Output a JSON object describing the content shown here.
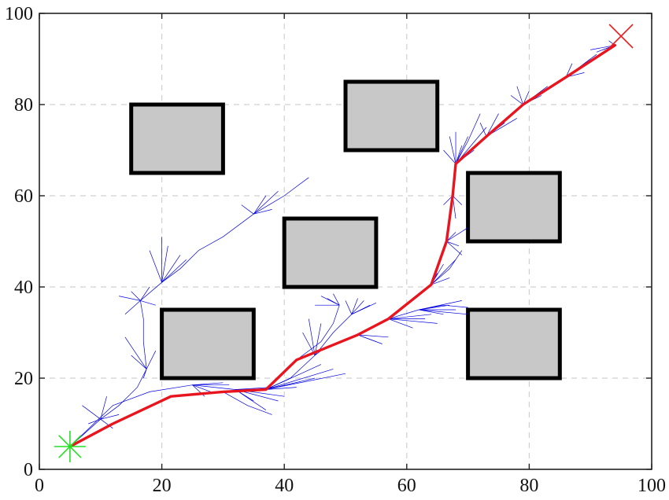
{
  "chart_data": {
    "type": "rrt-path-plot",
    "title": "",
    "xlabel": "",
    "ylabel": "",
    "xlim": [
      0,
      100
    ],
    "ylim": [
      0,
      100
    ],
    "xticks": [
      0,
      20,
      40,
      60,
      80,
      100
    ],
    "yticks": [
      0,
      20,
      40,
      60,
      80,
      100
    ],
    "grid": true,
    "colors": {
      "obstacle_fill": "#c8c8c8",
      "obstacle_edge": "#000000",
      "tree": "#0000e0",
      "path": "#e8141e",
      "start": "#22e022",
      "goal": "#e82020"
    },
    "start": [
      5,
      5
    ],
    "goal": [
      95,
      95
    ],
    "obstacles": [
      {
        "x0": 15,
        "y0": 65,
        "x1": 30,
        "y1": 80
      },
      {
        "x0": 50,
        "y0": 70,
        "x1": 65,
        "y1": 85
      },
      {
        "x0": 70,
        "y0": 50,
        "x1": 85,
        "y1": 65
      },
      {
        "x0": 40,
        "y0": 40,
        "x1": 55,
        "y1": 55
      },
      {
        "x0": 20,
        "y0": 20,
        "x1": 35,
        "y1": 35
      },
      {
        "x0": 70,
        "y0": 20,
        "x1": 85,
        "y1": 35
      }
    ],
    "path": [
      [
        5,
        5
      ],
      [
        12,
        10
      ],
      [
        21.5,
        16
      ],
      [
        30,
        17
      ],
      [
        37,
        17.5
      ],
      [
        42,
        24
      ],
      [
        52,
        29.5
      ],
      [
        57,
        33
      ],
      [
        64,
        40.5
      ],
      [
        66.5,
        50
      ],
      [
        67.5,
        60
      ],
      [
        68,
        67
      ],
      [
        73,
        73
      ],
      [
        79,
        80
      ],
      [
        86,
        86
      ],
      [
        94,
        93
      ]
    ],
    "tree_branches": [
      [
        [
          5,
          5
        ],
        [
          10,
          11
        ],
        [
          13,
          14
        ],
        [
          16,
          18
        ],
        [
          17.5,
          22
        ],
        [
          17,
          28
        ],
        [
          17,
          33
        ],
        [
          16.5,
          37
        ],
        [
          20,
          41
        ],
        [
          23,
          44
        ],
        [
          26,
          48
        ],
        [
          30,
          51
        ],
        [
          35,
          56
        ],
        [
          40,
          60
        ],
        [
          44,
          64
        ]
      ],
      [
        [
          5,
          5
        ],
        [
          12,
          14
        ],
        [
          18,
          17
        ],
        [
          25,
          18.5
        ],
        [
          32,
          17.5
        ],
        [
          37,
          17.5
        ]
      ],
      [
        [
          30,
          17
        ],
        [
          34,
          14
        ],
        [
          38,
          12
        ]
      ],
      [
        [
          37,
          17.5
        ],
        [
          41,
          20
        ],
        [
          45,
          25
        ],
        [
          48,
          30
        ],
        [
          51,
          34
        ],
        [
          53,
          37
        ]
      ],
      [
        [
          42,
          24
        ],
        [
          46,
          28
        ],
        [
          48,
          32
        ],
        [
          49,
          36
        ]
      ],
      [
        [
          57,
          33
        ],
        [
          62,
          35
        ],
        [
          66,
          36
        ],
        [
          70,
          35.5
        ]
      ],
      [
        [
          64,
          40.5
        ],
        [
          67,
          44
        ],
        [
          69,
          48
        ]
      ],
      [
        [
          68,
          67
        ],
        [
          70,
          72
        ],
        [
          72,
          78
        ]
      ]
    ],
    "tree_fans": [
      {
        "at": [
          16.5,
          37
        ],
        "to": [
          [
            13,
            38
          ],
          [
            14,
            34
          ],
          [
            15,
            39
          ],
          [
            18,
            40
          ],
          [
            19,
            36
          ]
        ]
      },
      {
        "at": [
          20,
          41
        ],
        "to": [
          [
            18,
            48
          ],
          [
            20,
            51
          ],
          [
            21,
            49
          ],
          [
            23,
            47
          ],
          [
            24,
            46
          ]
        ]
      },
      {
        "at": [
          17.5,
          22
        ],
        "to": [
          [
            15,
            25
          ],
          [
            14,
            29
          ],
          [
            17,
            20
          ],
          [
            19,
            26
          ]
        ]
      },
      {
        "at": [
          35,
          56
        ],
        "to": [
          [
            33,
            58
          ],
          [
            37,
            60
          ],
          [
            38,
            57
          ],
          [
            39,
            61
          ]
        ]
      },
      {
        "at": [
          10,
          11
        ],
        "to": [
          [
            7,
            14
          ],
          [
            8,
            10
          ],
          [
            12,
            9
          ],
          [
            13,
            12
          ],
          [
            11,
            16
          ]
        ]
      },
      {
        "at": [
          25,
          18.5
        ],
        "to": [
          [
            28,
            17
          ],
          [
            30,
            19
          ],
          [
            27,
            16
          ],
          [
            31,
            18.5
          ]
        ]
      },
      {
        "at": [
          32,
          17.5
        ],
        "to": [
          [
            35,
            15
          ],
          [
            37,
            13
          ],
          [
            39,
            15
          ],
          [
            40,
            16
          ],
          [
            38,
            18
          ]
        ]
      },
      {
        "at": [
          37,
          17.5
        ],
        "to": [
          [
            42,
            18
          ],
          [
            45,
            20
          ],
          [
            48,
            22
          ],
          [
            50,
            21
          ],
          [
            46,
            23
          ]
        ]
      },
      {
        "at": [
          45,
          25
        ],
        "to": [
          [
            43,
            30
          ],
          [
            44,
            33
          ],
          [
            46,
            32
          ],
          [
            47,
            27
          ]
        ]
      },
      {
        "at": [
          51,
          34
        ],
        "to": [
          [
            50,
            37
          ],
          [
            52,
            37.5
          ],
          [
            54,
            36
          ],
          [
            55,
            36.5
          ]
        ]
      },
      {
        "at": [
          49,
          36
        ],
        "to": [
          [
            46,
            38
          ],
          [
            47,
            37.5
          ],
          [
            48,
            38.5
          ],
          [
            45,
            36
          ]
        ]
      },
      {
        "at": [
          52,
          29.5
        ],
        "to": [
          [
            55,
            28
          ],
          [
            56,
            27.5
          ],
          [
            57,
            29
          ],
          [
            54,
            31
          ]
        ]
      },
      {
        "at": [
          57,
          33
        ],
        "to": [
          [
            61,
            31
          ],
          [
            63,
            33
          ],
          [
            65,
            32
          ],
          [
            64,
            34
          ]
        ]
      },
      {
        "at": [
          62,
          35
        ],
        "to": [
          [
            66,
            34
          ],
          [
            67,
            36
          ],
          [
            68,
            35
          ],
          [
            70,
            34
          ],
          [
            69,
            37
          ]
        ]
      },
      {
        "at": [
          64,
          40.5
        ],
        "to": [
          [
            65,
            43
          ],
          [
            66,
            45
          ],
          [
            67,
            42
          ],
          [
            68,
            46
          ]
        ]
      },
      {
        "at": [
          66.5,
          50
        ],
        "to": [
          [
            69,
            47
          ],
          [
            70,
            53
          ],
          [
            67,
            55
          ],
          [
            68,
            52
          ],
          [
            68.5,
            49
          ]
        ]
      },
      {
        "at": [
          67.5,
          60
        ],
        "to": [
          [
            68,
            55
          ],
          [
            69,
            58
          ],
          [
            66,
            58
          ]
        ]
      },
      {
        "at": [
          68,
          67
        ],
        "to": [
          [
            68,
            74
          ],
          [
            69,
            71
          ],
          [
            70,
            73
          ],
          [
            66,
            70
          ],
          [
            67,
            73
          ],
          [
            71,
            70
          ],
          [
            73,
            75
          ]
        ]
      },
      {
        "at": [
          73,
          73
        ],
        "to": [
          [
            76,
            76
          ],
          [
            75,
            78
          ],
          [
            78,
            77
          ],
          [
            72,
            76
          ]
        ]
      },
      {
        "at": [
          79,
          80
        ],
        "to": [
          [
            80,
            83
          ],
          [
            82,
            82
          ],
          [
            78,
            84
          ],
          [
            83,
            84
          ],
          [
            77,
            82
          ]
        ]
      },
      {
        "at": [
          86,
          86
        ],
        "to": [
          [
            88,
            88
          ],
          [
            90,
            90
          ],
          [
            89,
            87
          ],
          [
            91,
            91
          ],
          [
            87,
            89
          ]
        ]
      },
      {
        "at": [
          94,
          93
        ],
        "to": [
          [
            92,
            92
          ],
          [
            91,
            91.5
          ],
          [
            90,
            92
          ],
          [
            93,
            94
          ]
        ]
      }
    ]
  }
}
